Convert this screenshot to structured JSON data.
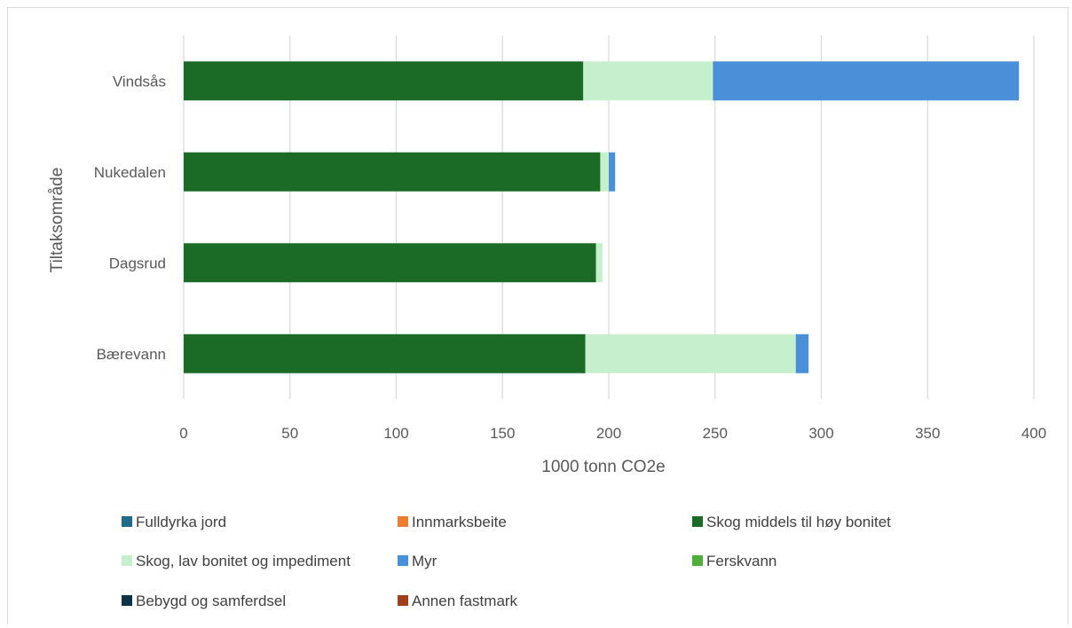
{
  "chart_data": {
    "type": "bar",
    "orientation": "horizontal",
    "stacked": true,
    "categories": [
      "Bærevann",
      "Dagsrud",
      "Nukedalen",
      "Vindsås"
    ],
    "series": [
      {
        "name": "Fulldyrka jord",
        "color": "#1f6b8c",
        "values": [
          0,
          0,
          0,
          0
        ]
      },
      {
        "name": "Innmarksbeite",
        "color": "#ed7d31",
        "values": [
          0,
          0,
          0,
          0
        ]
      },
      {
        "name": "Skog middels til høy bonitet",
        "color": "#1b6b27",
        "values": [
          189,
          194,
          196,
          188
        ]
      },
      {
        "name": "Skog, lav bonitet og impediment",
        "color": "#c6efce",
        "values": [
          99,
          3,
          4,
          61
        ]
      },
      {
        "name": "Myr",
        "color": "#4a90d9",
        "values": [
          6,
          0,
          3,
          144
        ]
      },
      {
        "name": "Ferskvann",
        "color": "#4fae3c",
        "values": [
          0,
          0,
          0,
          0
        ]
      },
      {
        "name": "Bebygd og samferdsel",
        "color": "#0d3349",
        "values": [
          0,
          0,
          0,
          0
        ]
      },
      {
        "name": "Annen fastmark",
        "color": "#a0401a",
        "values": [
          0,
          0,
          0,
          0
        ]
      }
    ],
    "title": "",
    "xlabel": "1000 tonn CO2e",
    "ylabel": "Tiltaksområde",
    "xlim": [
      0,
      400
    ],
    "xticks": [
      "0",
      "50",
      "100",
      "150",
      "200",
      "250",
      "300",
      "350",
      "400"
    ],
    "grid": "vertical",
    "legend": "bottom"
  }
}
